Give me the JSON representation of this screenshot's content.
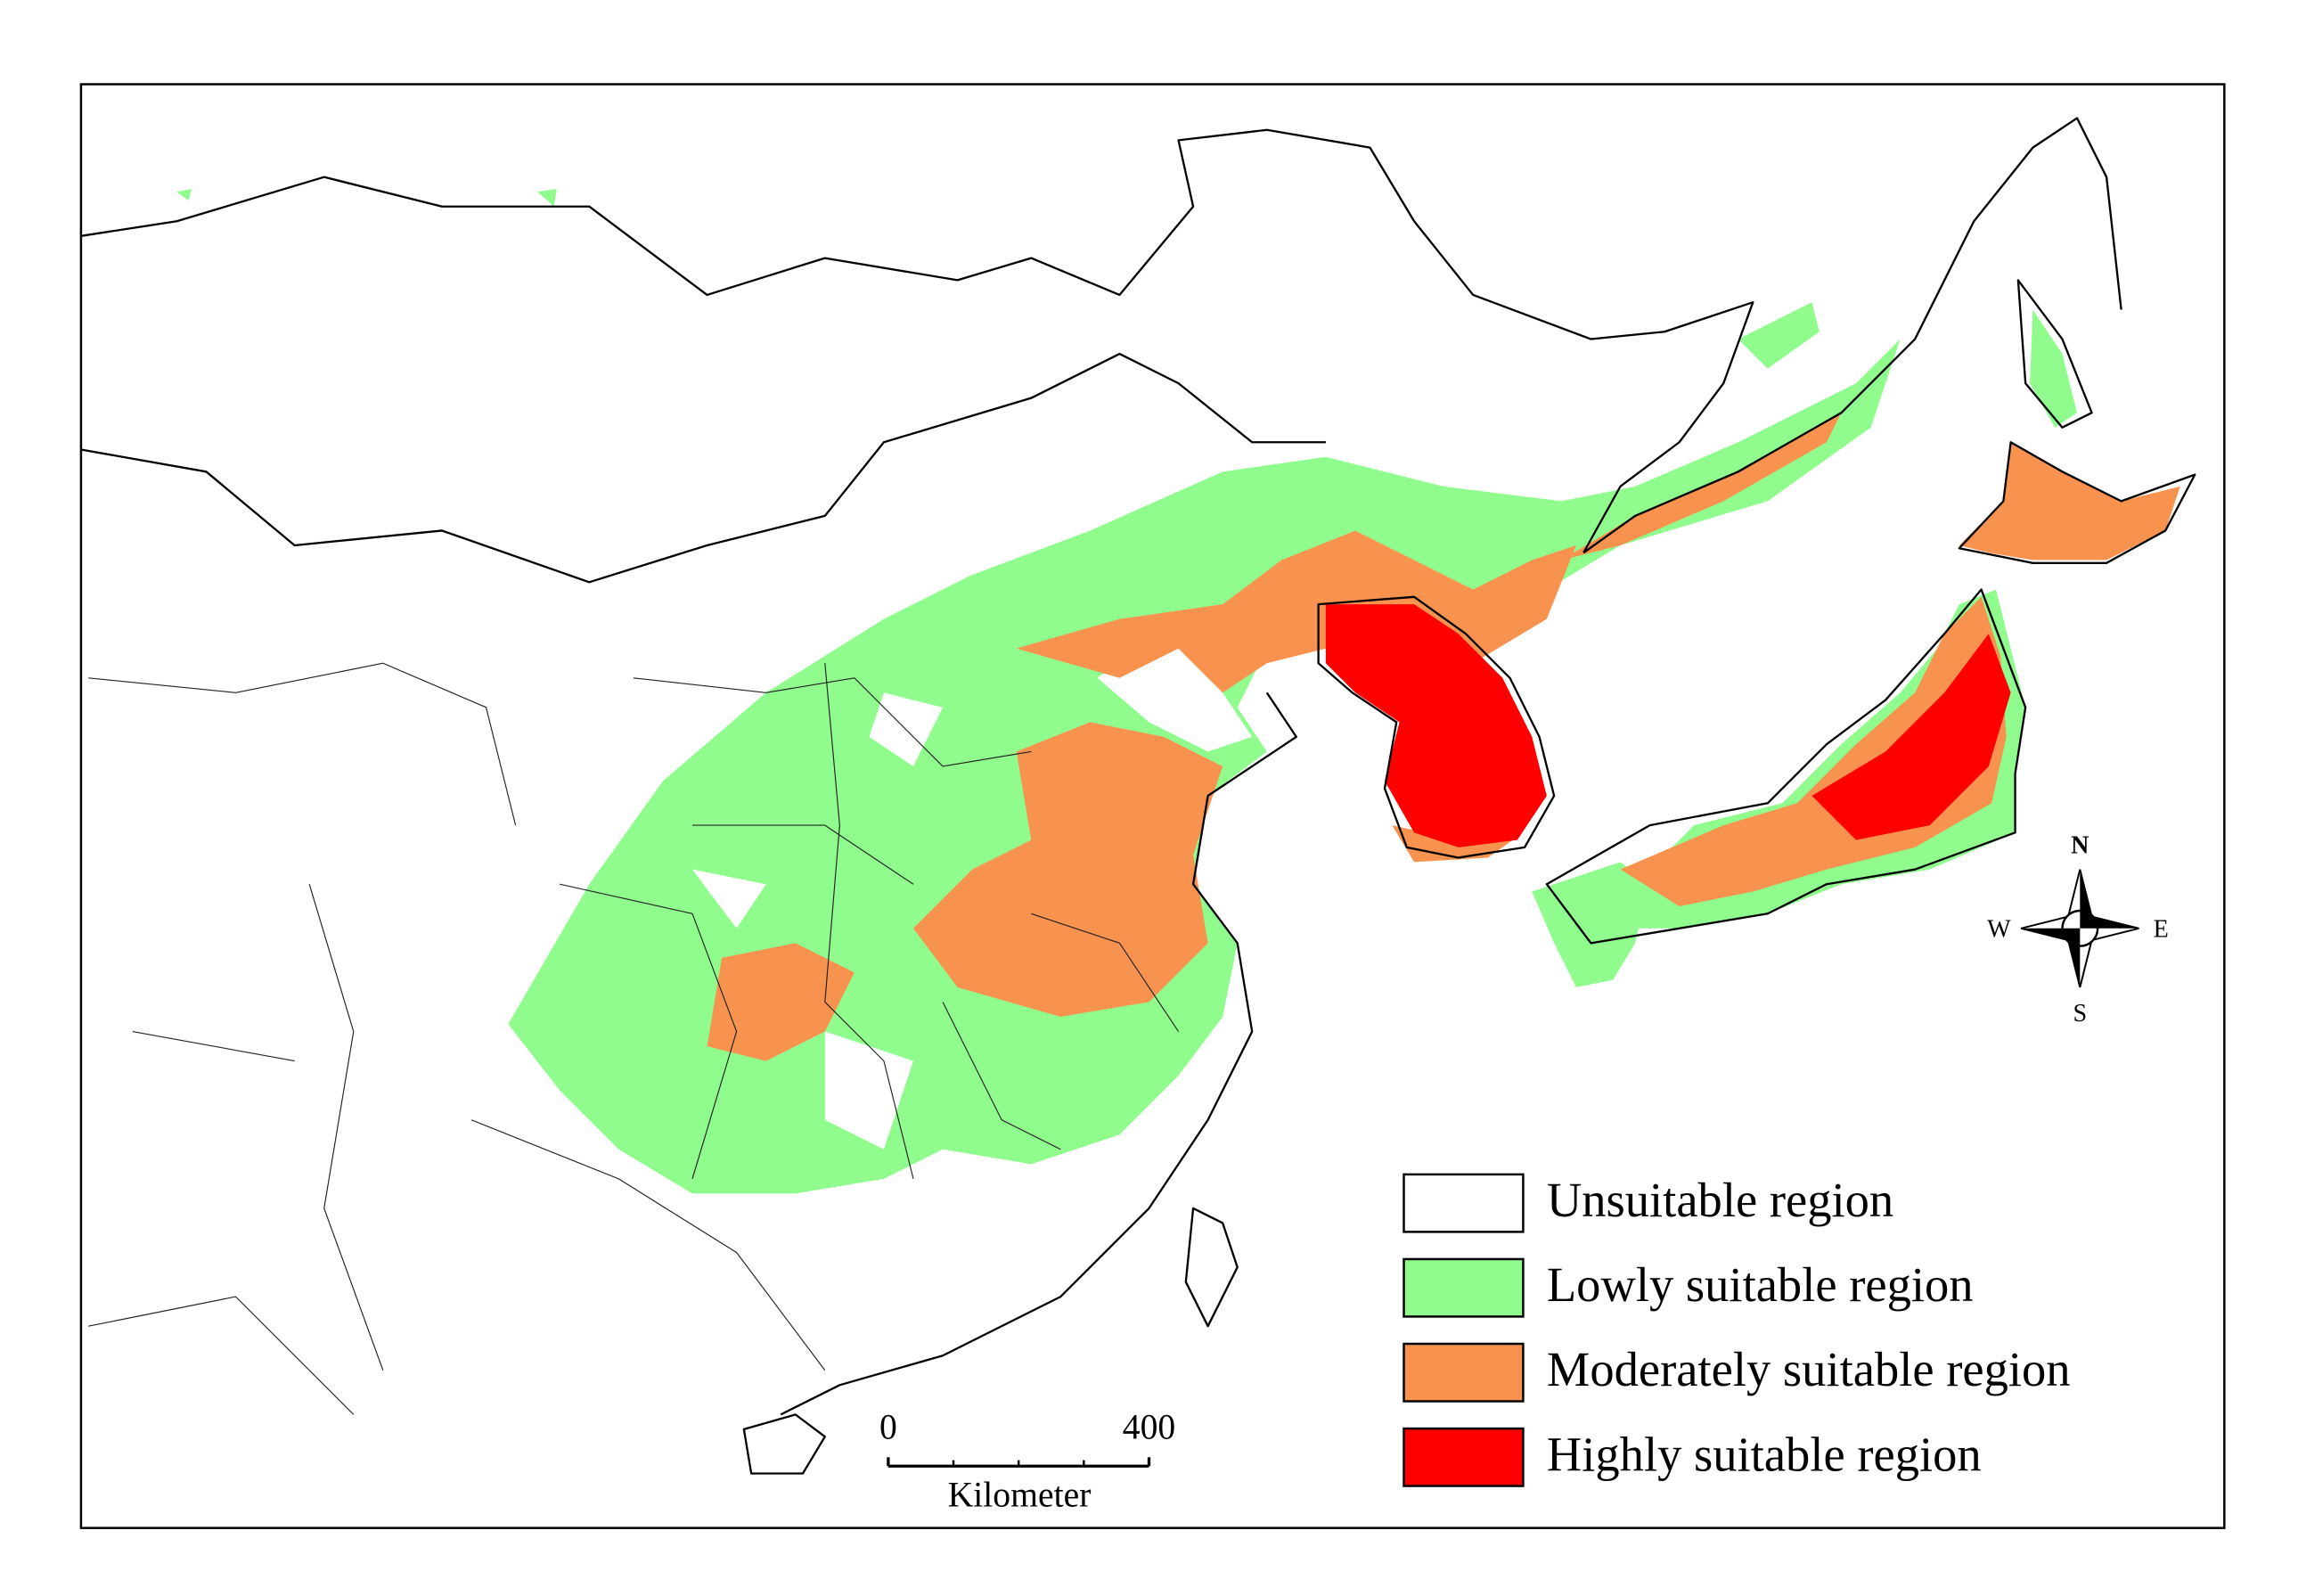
{
  "legend": {
    "items": [
      {
        "label": "Unsuitable region",
        "color": "#ffffff"
      },
      {
        "label": "Lowly suitable region",
        "color": "#90fc8e"
      },
      {
        "label": "Moderately suitable region",
        "color": "#f7934f"
      },
      {
        "label": "Highly suitable region",
        "color": "#fe0000"
      }
    ]
  },
  "scale_bar": {
    "ticks": [
      0,
      400
    ],
    "unit": "Kilometer"
  },
  "compass": {
    "north": "N",
    "south": "S",
    "east": "E",
    "west": "W"
  }
}
